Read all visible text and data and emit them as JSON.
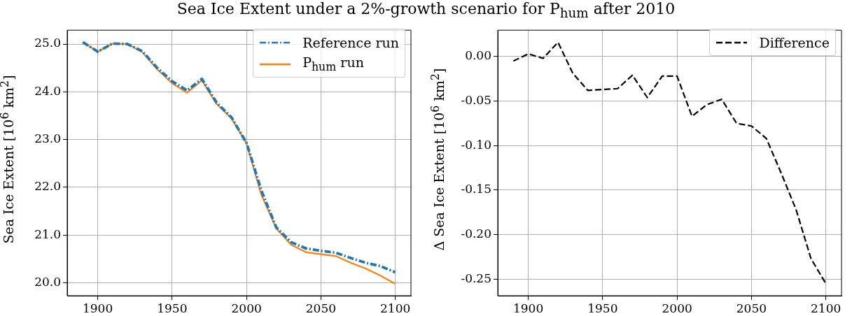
{
  "chart_data": [
    {
      "type": "line",
      "title": "Sea Ice Extent under a 2%-growth scenario for P$_{hum}$ after 2010",
      "ylabel": "Sea Ice Extent [10$^{6}$ km$^{2}$]",
      "x": [
        1890,
        1900,
        1910,
        1920,
        1930,
        1940,
        1950,
        1960,
        1970,
        1980,
        1990,
        2000,
        2010,
        2020,
        2030,
        2040,
        2050,
        2060,
        2070,
        2080,
        2090,
        2100
      ],
      "series": [
        {
          "name": "Reference run",
          "color": "#1f77b4",
          "line_style": "dashdot",
          "values": [
            25.04,
            24.84,
            25.01,
            25.0,
            24.85,
            24.5,
            24.22,
            24.03,
            24.27,
            23.77,
            23.46,
            22.93,
            21.93,
            21.16,
            20.85,
            20.72,
            20.67,
            20.63,
            20.52,
            20.42,
            20.35,
            20.22
          ]
        },
        {
          "name": "P$_{hum}$ run",
          "color": "#ff7f0e",
          "line_style": "solid",
          "values": [
            25.04,
            24.84,
            25.01,
            25.0,
            24.83,
            24.47,
            24.18,
            23.98,
            24.24,
            23.74,
            23.44,
            22.92,
            21.84,
            21.14,
            20.8,
            20.64,
            20.6,
            20.56,
            20.42,
            20.3,
            20.15,
            19.98
          ]
        }
      ],
      "xlim": [
        1879.5,
        2110.5
      ],
      "ylim": [
        19.73,
        25.29
      ],
      "xticks": [
        1900,
        1950,
        2000,
        2050,
        2100
      ],
      "yticks": [
        {
          "value": 20,
          "label": "20.0"
        },
        {
          "value": 21,
          "label": "21.0"
        },
        {
          "value": 22,
          "label": "22.0"
        },
        {
          "value": 23,
          "label": "23.0"
        },
        {
          "value": 24,
          "label": "24.0"
        },
        {
          "value": 25,
          "label": "25.0"
        }
      ],
      "grid": true,
      "legend": "top right"
    },
    {
      "type": "line",
      "ylabel": "Δ Sea Ice Extent [10$^{6}$ km$^{2}$]",
      "x": [
        1890,
        1900,
        1910,
        1920,
        1930,
        1940,
        1950,
        1960,
        1970,
        1980,
        1990,
        2000,
        2010,
        2020,
        2030,
        2040,
        2050,
        2060,
        2070,
        2080,
        2090,
        2100
      ],
      "series": [
        {
          "name": "Difference",
          "color": "#000000",
          "line_style": "dashed",
          "values": [
            -0.005,
            0.003,
            -0.002,
            0.016,
            -0.019,
            -0.038,
            -0.037,
            -0.036,
            -0.021,
            -0.046,
            -0.022,
            -0.022,
            -0.067,
            -0.054,
            -0.048,
            -0.075,
            -0.078,
            -0.092,
            -0.131,
            -0.172,
            -0.227,
            -0.255
          ]
        }
      ],
      "xlim": [
        1879.5,
        2110.5
      ],
      "ylim": [
        -0.2686,
        0.0296
      ],
      "xticks": [
        1900,
        1950,
        2000,
        2050,
        2100
      ],
      "yticks": [
        {
          "value": 0,
          "label": "0.00"
        },
        {
          "value": -0.05,
          "label": "-0.05"
        },
        {
          "value": -0.1,
          "label": "-0.10"
        },
        {
          "value": -0.15,
          "label": "-0.15"
        },
        {
          "value": -0.2,
          "label": "-0.20"
        },
        {
          "value": -0.25,
          "label": "-0.25"
        }
      ],
      "grid": true,
      "legend": "top right"
    }
  ]
}
